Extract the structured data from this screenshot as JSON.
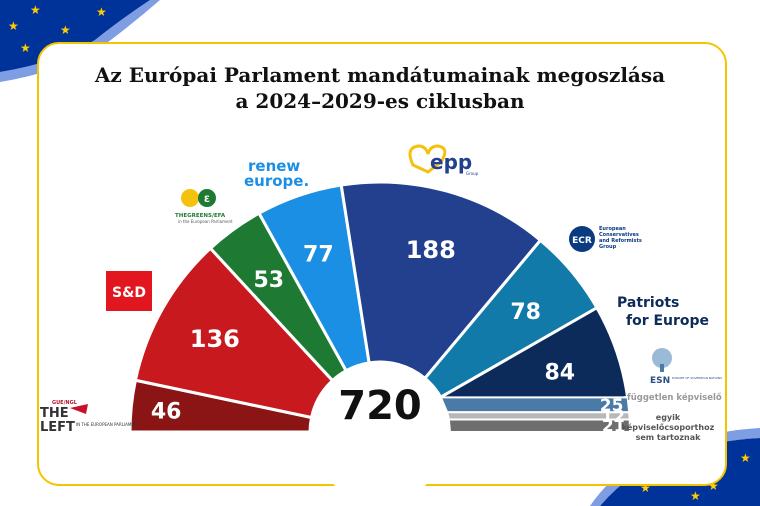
{
  "title": {
    "line1": "Az Európai Parlament mandátumainak megoszlása",
    "line2": "a 2024–2029-es ciklusban"
  },
  "colors": {
    "left": "#8b1414",
    "sd": "#c81a1e",
    "greens": "#1e7a32",
    "renew": "#1a8fe3",
    "epp": "#23408f",
    "ecr": "#127aa8",
    "patriots": "#0c2a5a",
    "esn": "#4a7ba6",
    "ni": "#b8b8b8",
    "other": "#6e6e6e",
    "accent": "#f2c500",
    "flag_blue": "#003399",
    "star": "#ffcc00"
  },
  "logos": {
    "left": {
      "line1": "THE",
      "line2": "LEFT",
      "small": "IN THE EUROPEAN PARLIAMENT",
      "top": "GUE/NGL"
    },
    "sd": {
      "text": "S&D"
    },
    "greens": {
      "text": "THEGREENS/EFA",
      "small": "in the European Parliament"
    },
    "renew": {
      "line1": "renew",
      "line2": "europe."
    },
    "epp": {
      "text": "epp",
      "small": "Group"
    },
    "ecr": {
      "badge": "ECR",
      "line1": "European",
      "line2": "Conservatives",
      "line3": "and Reformists",
      "line4": "Group"
    },
    "patriots": {
      "line1": "Patriots",
      "line2": "for Europe"
    },
    "esn": {
      "text": "ESN",
      "small": "EUROPE OF SOVEREIGN NATIONS"
    },
    "ni": {
      "text": "független képviselő"
    },
    "other": {
      "line1": "egyik",
      "line2": "képviselőcsoporthoz",
      "line3": "sem tartoznak"
    }
  },
  "chart_data": {
    "type": "parliament",
    "title": "Az Európai Parlament mandátumainak megoszlása a 2024–2029-es ciklusban",
    "total": 720,
    "series": [
      {
        "key": "left",
        "name": "The Left",
        "value": 46
      },
      {
        "key": "sd",
        "name": "S&D",
        "value": 136
      },
      {
        "key": "greens",
        "name": "The Greens/EFA",
        "value": 53
      },
      {
        "key": "renew",
        "name": "Renew Europe",
        "value": 77
      },
      {
        "key": "epp",
        "name": "EPP",
        "value": 188
      },
      {
        "key": "ecr",
        "name": "ECR",
        "value": 78
      },
      {
        "key": "patriots",
        "name": "Patriots for Europe",
        "value": 84
      },
      {
        "key": "esn",
        "name": "ESN",
        "value": 25
      },
      {
        "key": "ni",
        "name": "független képviselő",
        "value": 12
      },
      {
        "key": "other",
        "name": "egyik képviselőcsoporthoz sem tartoznak",
        "value": 21
      }
    ]
  }
}
